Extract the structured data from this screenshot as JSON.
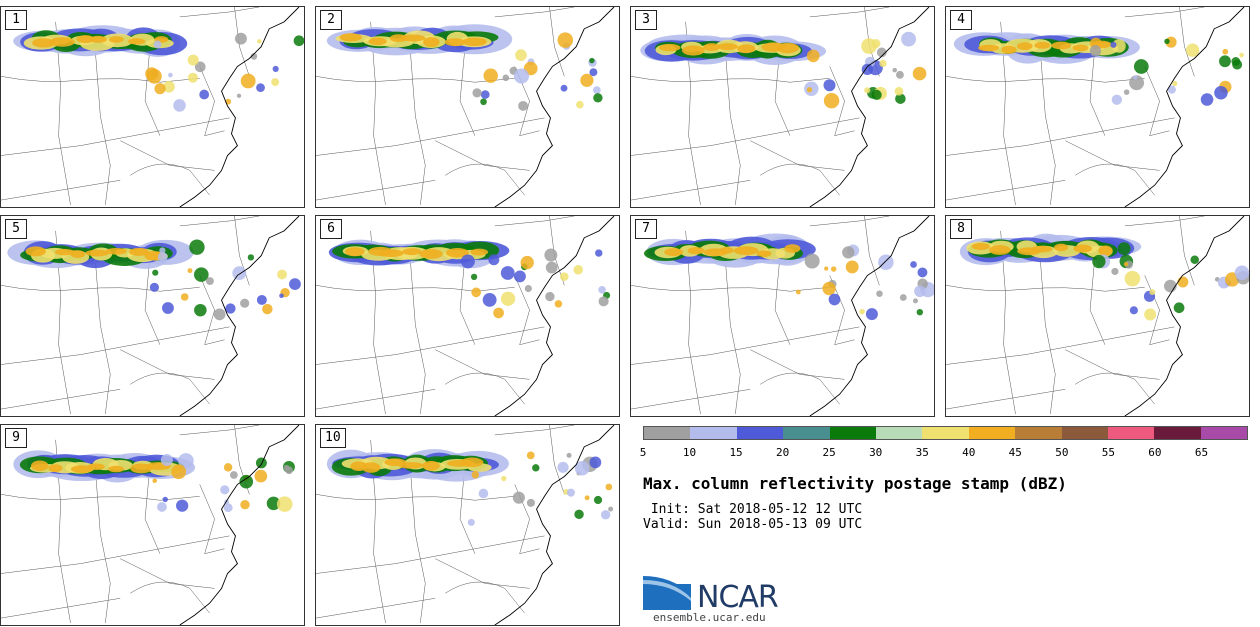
{
  "panels": [
    {
      "label": "1"
    },
    {
      "label": "2"
    },
    {
      "label": "3"
    },
    {
      "label": "4"
    },
    {
      "label": "5"
    },
    {
      "label": "6"
    },
    {
      "label": "7"
    },
    {
      "label": "8"
    },
    {
      "label": "9"
    },
    {
      "label": "10"
    }
  ],
  "colorbar": {
    "colors": [
      "#a0a0a0",
      "#b4bcec",
      "#4f5ad8",
      "#4a8f8f",
      "#0a7a0a",
      "#b8dcb8",
      "#f0e070",
      "#f0ae20",
      "#b87e38",
      "#8a5a3a",
      "#ee5a7e",
      "#6a1a3a",
      "#a84aa8"
    ],
    "ticks": [
      "5",
      "10",
      "15",
      "20",
      "25",
      "30",
      "35",
      "40",
      "45",
      "50",
      "55",
      "60",
      "65"
    ]
  },
  "title": "Max. column reflectivity postage stamp (dBZ)",
  "init": " Init: Sat 2018-05-12 12 UTC",
  "valid": "Valid: Sun 2018-05-13 09 UTC",
  "logo": {
    "text": "NCAR",
    "url": "ensemble.ucar.edu"
  }
}
